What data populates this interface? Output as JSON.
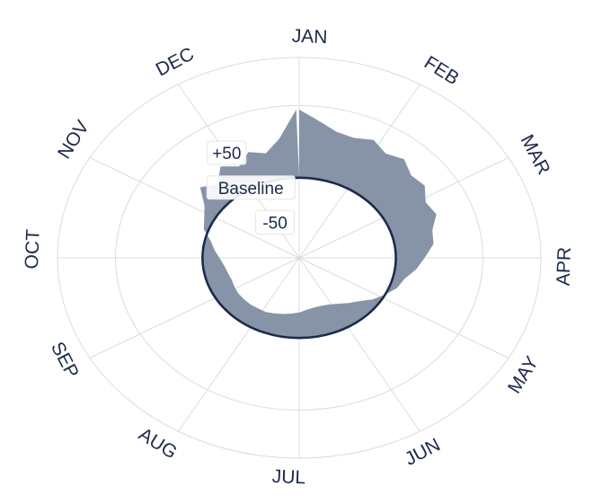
{
  "chart_data": {
    "type": "area",
    "projection": "polar",
    "direction": "clockwise",
    "rotation_start": "top (January)",
    "months": [
      "JAN",
      "FEB",
      "MAR",
      "APR",
      "MAY",
      "JUN",
      "JUL",
      "AUG",
      "SEP",
      "OCT",
      "NOV",
      "DEC"
    ],
    "radial_range": [
      -100,
      150
    ],
    "radial_ticks": [
      {
        "value": -50,
        "label": "-50"
      },
      {
        "value": 50,
        "label": "+50"
      }
    ],
    "baseline": {
      "value": 0,
      "label": "Baseline"
    },
    "series": [
      {
        "x_units": "day of year",
        "x": [
          1,
          8,
          15,
          22,
          29,
          36,
          43,
          50,
          57,
          64,
          71,
          78,
          85,
          92,
          99,
          106,
          113,
          120,
          127,
          134,
          141,
          148,
          155,
          162,
          169,
          176,
          183,
          190,
          197,
          204,
          211,
          218,
          225,
          232,
          239,
          246,
          253,
          260,
          267,
          274,
          281,
          288,
          295,
          302,
          309,
          316,
          323,
          330,
          337,
          344,
          351,
          358,
          365
        ],
        "values": [
          85,
          72,
          62,
          60,
          66,
          58,
          64,
          55,
          58,
          48,
          52,
          42,
          40,
          30,
          22,
          12,
          8,
          0,
          -8,
          -18,
          -24,
          -30,
          -34,
          -36,
          -36,
          -35,
          -32,
          -30,
          -28,
          -26,
          -24,
          -24,
          -23,
          -23,
          -23,
          -24,
          -25,
          -24,
          -22,
          -18,
          -12,
          -6,
          5,
          10,
          18,
          35,
          25,
          40,
          30,
          42,
          35,
          50,
          85
        ]
      }
    ],
    "colors": {
      "fill": "#8794a8",
      "baseline": "#1c2b4a",
      "grid": "#dcdcdc",
      "text": "#1c2b4a"
    },
    "grid": true
  }
}
